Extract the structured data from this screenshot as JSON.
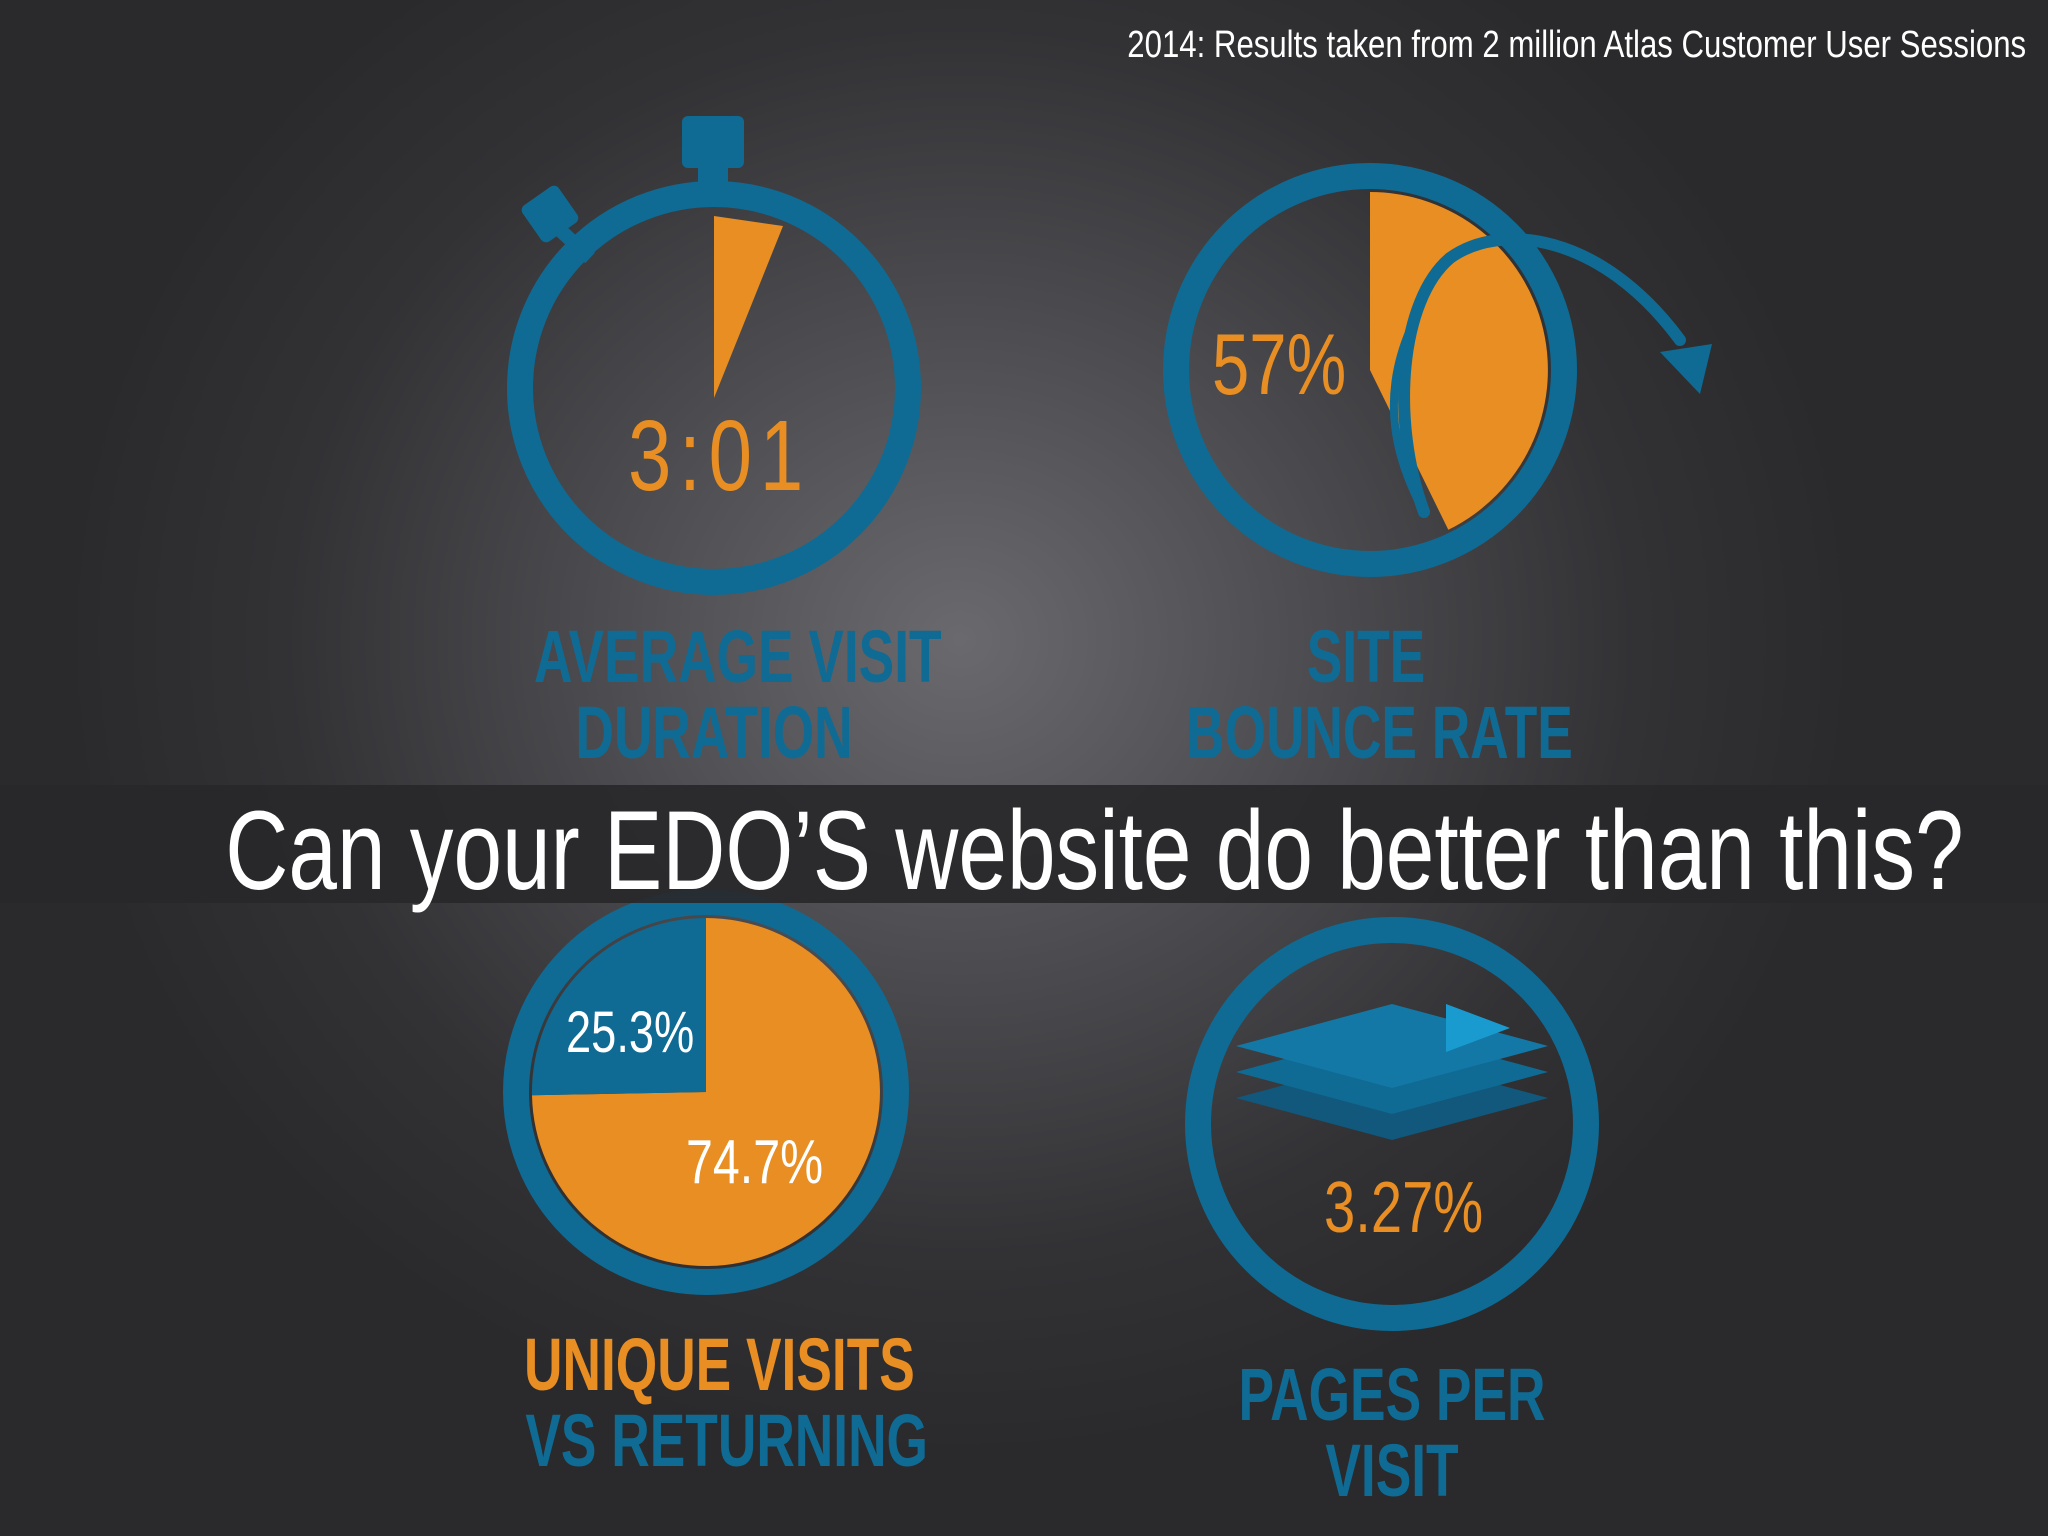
{
  "header": {
    "source_note": "2014: Results taken from 2 million Atlas Customer User Sessions"
  },
  "banner": {
    "question": "Can your EDO’S website do better than this?"
  },
  "metrics": {
    "visit_duration": {
      "value": "3:01",
      "label_line1": "AVERAGE VISIT",
      "label_line2": "DURATION",
      "icon": "stopwatch-icon"
    },
    "bounce_rate": {
      "value": "57%",
      "fraction": 0.57,
      "label_line1": "SITE",
      "label_line2": "BOUNCE RATE",
      "icon": "bounce-arrow-icon"
    },
    "unique_vs_returning": {
      "returning_value": "25.3%",
      "unique_value": "74.7%",
      "returning_fraction": 0.253,
      "unique_fraction": 0.747,
      "label_line1": "UNIQUE VISITS",
      "label_line2": "VS RETURNING"
    },
    "pages_per_visit": {
      "value": "3.27%",
      "label_line1": "PAGES PER",
      "label_line2": "VISIT",
      "icon": "stacked-pages-icon"
    }
  },
  "colors": {
    "blue": "#0f6b94",
    "orange": "#e88e23",
    "light_blue": "#1a9bd0"
  }
}
